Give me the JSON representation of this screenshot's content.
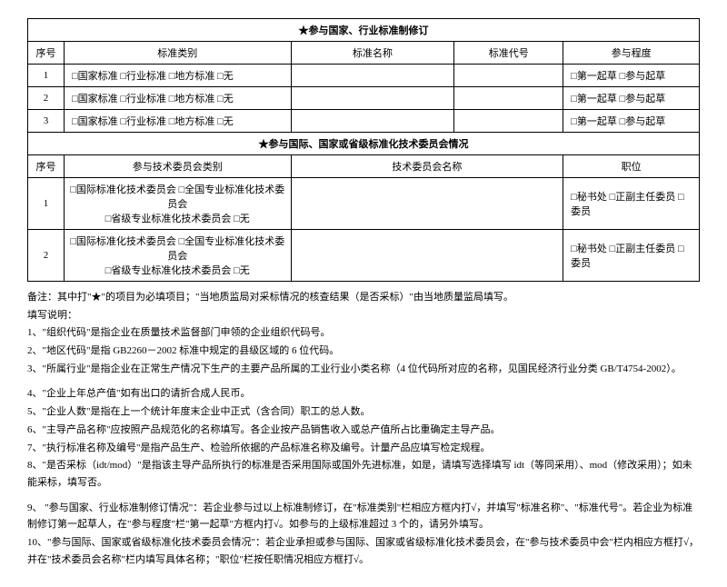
{
  "table1": {
    "title": "★参与国家、行业标准制修订",
    "headers": {
      "seq": "序号",
      "type": "标准类别",
      "name": "标准名称",
      "code": "标准代号",
      "level": "参与程度"
    },
    "typeOptions": "□国家标准  □行业标准  □地方标准  □无",
    "levelOptions": "□第一起草  □参与起草",
    "rows": [
      "1",
      "2",
      "3"
    ]
  },
  "table2": {
    "title": "★参与国际、国家或省级标准化技术委员会情况",
    "headers": {
      "seq": "序号",
      "type": "参与技术委员会类别",
      "name": "技术委员会名称",
      "pos": "职位"
    },
    "typeLine1": "□国际标准化技术委员会  □全国专业标准化技术委员会",
    "typeLine2": "□省级专业标准化技术委员会  □无",
    "posOptions": "□秘书处  □正副主任委员  □委员",
    "rows": [
      "1",
      "2"
    ]
  },
  "notes": {
    "prefix": "备注：其中打\"★\"的项目为必填项目；\"当地质监局对采标情况的核查结果（是否采标）\"由当地质量监局填写。",
    "introLabel": "填写说明：",
    "n1": "1、\"组织代码\"是指企业在质量技术监督部门申领的企业组织代码号。",
    "n2": "2、\"地区代码\"是指 GB2260－2002 标准中规定的县级区域的 6 位代码。",
    "n3": "3、\"所属行业\"是指企业在正常生产情况下生产的主要产品所属的工业行业小类名称（4 位代码所对应的名称，见国民经济行业分类 GB/T4754-2002）。",
    "n4": "4、\"企业上年总产值\"如有出口的请折合成人民币。",
    "n5": "5、\"企业人数\"是指在上一个统计年度末企业中正式（含合同）职工的总人数。",
    "n6": "6、\"主导产品名称\"应按照产品规范化的名称填写。各企业按产品销售收入或总产值所占比重确定主导产品。",
    "n7": "7、\"执行标准名称及编号\"是指产品生产、检验所依据的产品标准名称及编号。计量产品应填写检定规程。",
    "n8": "8、\"是否采标（idt/mod）\"是指该主导产品所执行的标准是否采用国际或国外先进标准，如是，请填写选择填写 idt（等同采用）、mod（修改采用）；如未能采标，填写否。",
    "n9": "9、 \"参与国家、行业标准制修订情况\"：若企业参与过以上标准制修订，在\"标准类别\"栏相应方框内打√，并填写\"标准名称\"、\"标准代号\"。若企业为标准制修订第一起草人，在\"参与程度\"栏\"第一起草\"方框内打√。如参与的上级标准超过 3 个的，请另外填写。",
    "n10": "10、\"参与国际、国家或省级标准化技术委员会情况\"：若企业承担或参与国际、国家或省级标准化技术委员会，在\"参与技术委员中会\"栏内相应方框打√，并在\"技术委员会名称\"栏内填写具体名称；\"职位\"栏按任职情况相应方框打√。"
  }
}
